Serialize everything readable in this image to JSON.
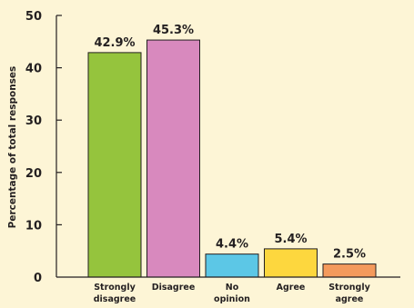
{
  "chart_data": {
    "type": "bar",
    "categories": [
      [
        "Strongly",
        "disagree"
      ],
      [
        "Disagree"
      ],
      [
        "No",
        "opinion"
      ],
      [
        "Agree"
      ],
      [
        "Strongly",
        "agree"
      ]
    ],
    "values": [
      42.9,
      45.3,
      4.4,
      5.4,
      2.5
    ],
    "data_labels": [
      "42.9%",
      "45.3%",
      "4.4%",
      "5.4%",
      "2.5%"
    ],
    "bar_colors": [
      "#95c43d",
      "#d889be",
      "#5cc7e6",
      "#fdd73e",
      "#f49a5c"
    ],
    "ylabel": "Percentage of total responses",
    "xlabel": "",
    "title": "",
    "ylim": [
      0,
      50
    ],
    "yticks": [
      0,
      10,
      20,
      30,
      40,
      50
    ],
    "grid": false,
    "legend": "none"
  }
}
